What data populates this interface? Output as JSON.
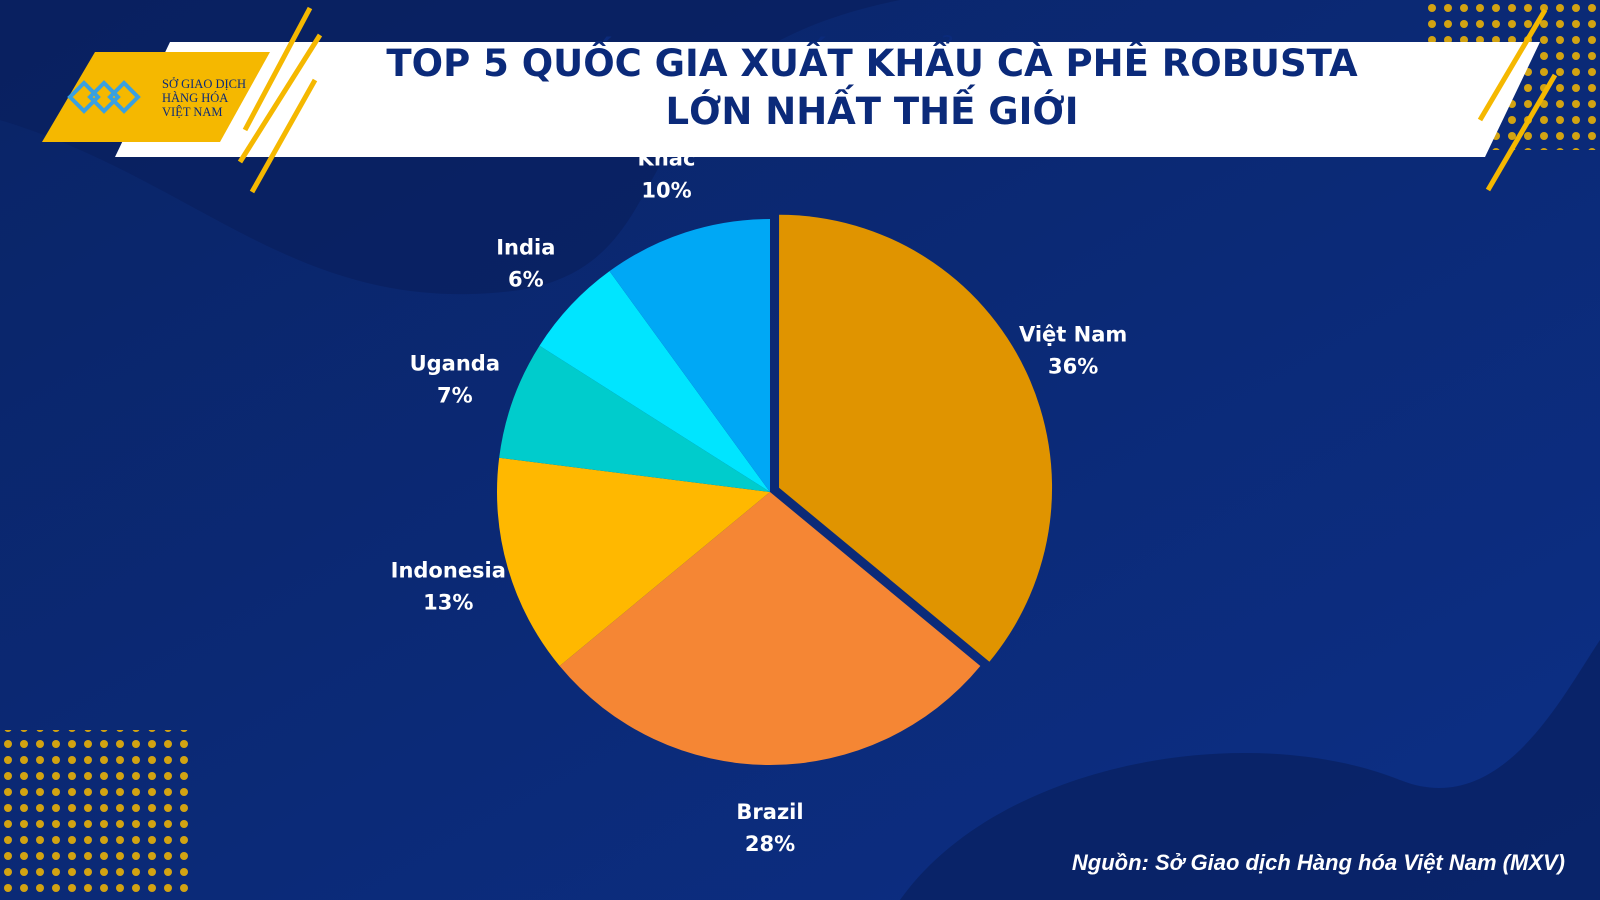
{
  "header": {
    "logo_lines": [
      "SỞ GIAO DỊCH",
      "HÀNG HÓA",
      "VIỆT NAM"
    ]
  },
  "chart_data": {
    "type": "pie",
    "title": [
      "TOP 5 QUỐC GIA XUẤT KHẨU CÀ PHÊ ROBUSTA",
      "LỚN NHẤT THẾ GIỚI"
    ],
    "categories": [
      "Việt Nam",
      "Brazil",
      "Indonesia",
      "Uganda",
      "India",
      "Khác"
    ],
    "values": [
      36,
      28,
      13,
      7,
      6,
      10
    ],
    "value_labels": [
      "36%",
      "28%",
      "13%",
      "7%",
      "6%",
      "10%"
    ],
    "colors": [
      "#e09400",
      "#f58634",
      "#ffb800",
      "#00cccc",
      "#00e5ff",
      "#00a8f5"
    ],
    "explode": [
      true,
      false,
      false,
      false,
      false,
      false
    ],
    "source": "Nguồn: Sở Giao dịch Hàng hóa Việt Nam (MXV)"
  }
}
